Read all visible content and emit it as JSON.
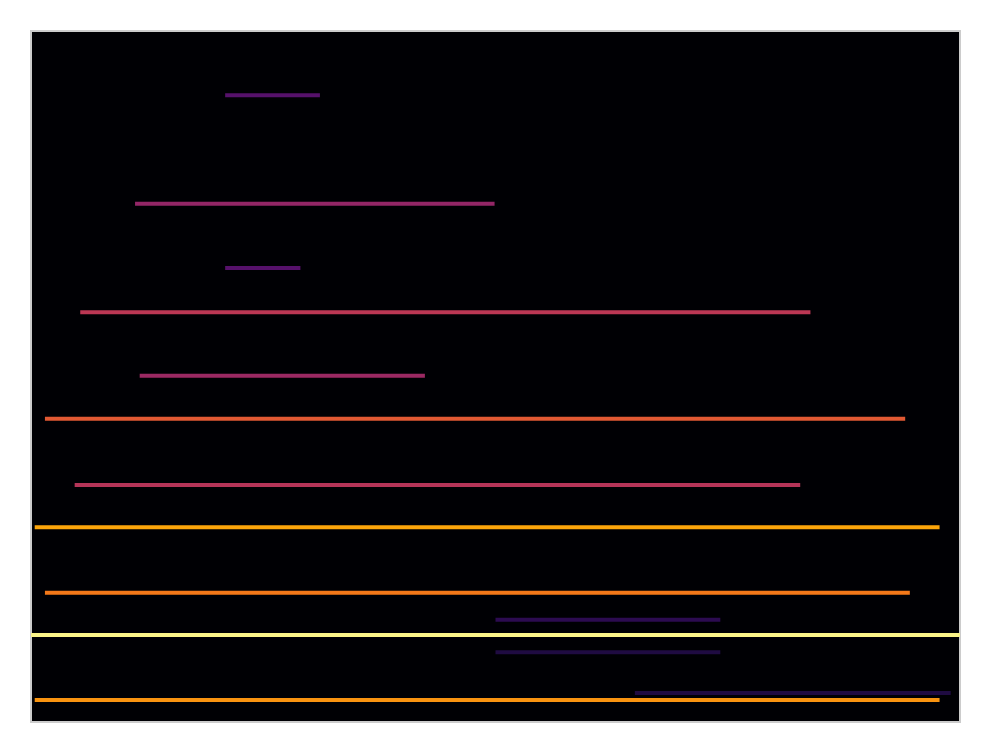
{
  "chart_data": {
    "type": "spectrogram",
    "tick_labels": false,
    "xlim": [
      0,
      100
    ],
    "ylim": [
      0,
      100
    ],
    "color_range": [
      0,
      1
    ],
    "harmonics": [
      {
        "frequency": 90.7,
        "start": 20.9,
        "end": 31.1,
        "intensity": 0.25
      },
      {
        "frequency": 75.0,
        "start": 11.2,
        "end": 49.9,
        "intensity": 0.4
      },
      {
        "frequency": 65.7,
        "start": 20.9,
        "end": 29.0,
        "intensity": 0.25
      },
      {
        "frequency": 59.3,
        "start": 5.3,
        "end": 83.9,
        "intensity": 0.5
      },
      {
        "frequency": 50.1,
        "start": 11.7,
        "end": 42.4,
        "intensity": 0.42
      },
      {
        "frequency": 43.9,
        "start": 1.5,
        "end": 94.1,
        "intensity": 0.62
      },
      {
        "frequency": 34.3,
        "start": 4.7,
        "end": 82.8,
        "intensity": 0.48
      },
      {
        "frequency": 28.2,
        "start": 0.4,
        "end": 97.8,
        "intensity": 0.8
      },
      {
        "frequency": 18.7,
        "start": 1.5,
        "end": 94.6,
        "intensity": 0.7
      },
      {
        "frequency": 14.8,
        "start": 50.0,
        "end": 74.2,
        "intensity": 0.15
      },
      {
        "frequency": 12.6,
        "start": 0.0,
        "end": 100.0,
        "intensity": 0.97
      },
      {
        "frequency": 10.1,
        "start": 50.0,
        "end": 74.2,
        "intensity": 0.12
      },
      {
        "frequency": 4.2,
        "start": 65.0,
        "end": 99.0,
        "intensity": 0.12
      },
      {
        "frequency": 3.2,
        "start": 0.4,
        "end": 97.8,
        "intensity": 0.76
      }
    ]
  }
}
